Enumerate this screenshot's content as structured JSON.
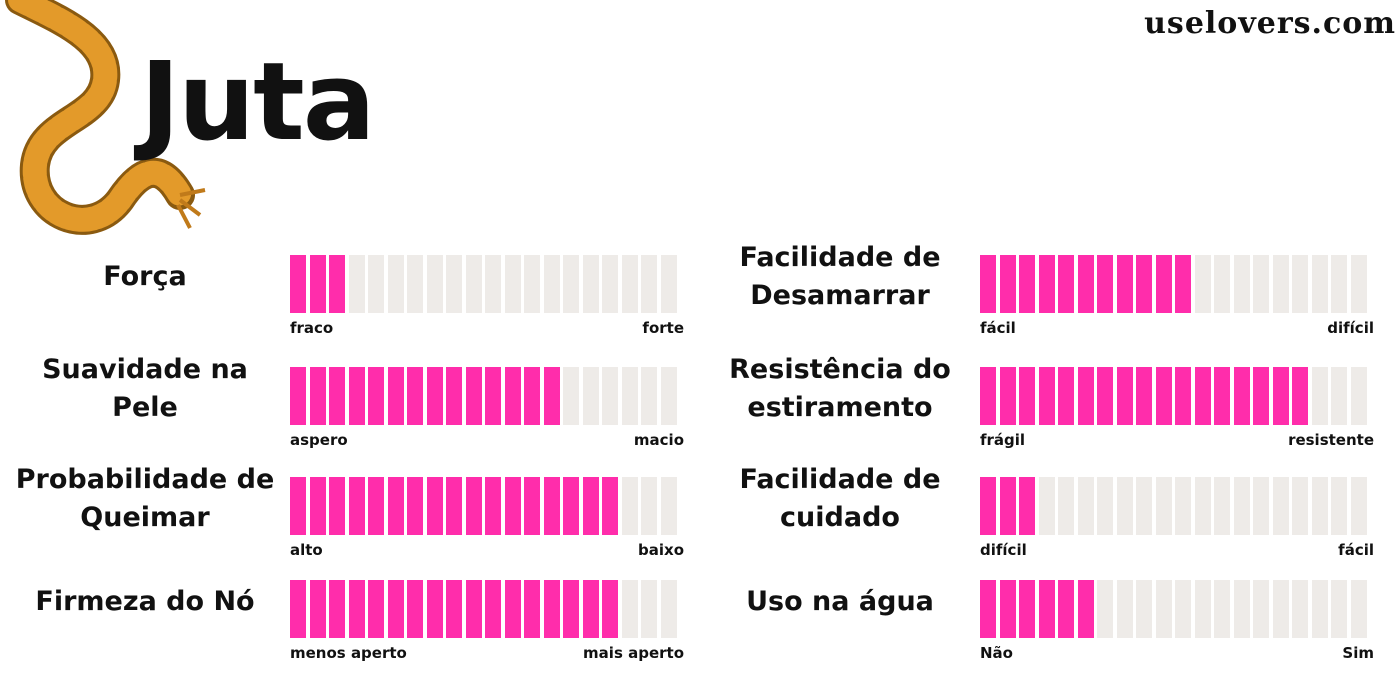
{
  "header": {
    "title": "Juta",
    "site": "uselovers.com"
  },
  "scale": [
    0,
    20
  ],
  "ratings": [
    {
      "label": "Força",
      "filled": 3,
      "low": "fraco",
      "high": "forte"
    },
    {
      "label": "Suavidade na\nPele",
      "filled": 14,
      "low": "aspero",
      "high": "macio"
    },
    {
      "label": "Probabilidade de\nQueimar",
      "filled": 17,
      "low": "alto",
      "high": "baixo"
    },
    {
      "label": "Firmeza do Nó",
      "filled": 17,
      "low": "menos aperto",
      "high": "mais aperto"
    },
    {
      "label": "Facilidade de\nDesamarrar",
      "filled": 11,
      "low": "fácil",
      "high": "difícil"
    },
    {
      "label": "Resistência do\nestiramento",
      "filled": 17,
      "low": "frágil",
      "high": "resistente"
    },
    {
      "label": "Facilidade de\ncuidado",
      "filled": 3,
      "low": "difícil",
      "high": "fácil"
    },
    {
      "label": "Uso na água",
      "filled": 6,
      "low": "Não",
      "high": "Sim"
    }
  ]
}
